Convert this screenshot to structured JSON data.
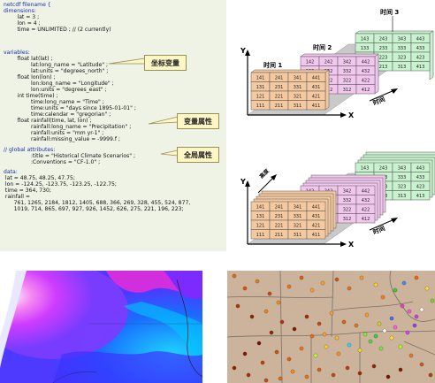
{
  "code": {
    "lines": [
      {
        "text": "netcdf filename {",
        "kw": true
      },
      {
        "text": "dimensions:",
        "kw": true
      },
      {
        "text": "        lat = 3 ;",
        "kw": false
      },
      {
        "text": "        lon = 4 ;",
        "kw": false
      },
      {
        "text": "        time = UNLIMITED ; // (2 currently)",
        "kw": false
      },
      {
        "text": "variables:",
        "kw": true
      },
      {
        "text": "        float lat(lat) ;",
        "kw": false
      },
      {
        "text": "                lat:long_name = \"Latitude\" ;",
        "kw": false
      },
      {
        "text": "                lat:units = \"degrees_north\" ;",
        "kw": false
      },
      {
        "text": "        float lon(lon) ;",
        "kw": false
      },
      {
        "text": "                lon:long_name = \"Longitude\" ;",
        "kw": false
      },
      {
        "text": "                lon:units = \"degrees_east\" ;",
        "kw": false
      },
      {
        "text": "        int time(time) ;",
        "kw": false
      },
      {
        "text": "                time:long_name = \"Time\" ;",
        "kw": false
      },
      {
        "text": "                time:units = \"days since 1895-01-01\" ;",
        "kw": false
      },
      {
        "text": "                time:calendar = \"gregorian\" ;",
        "kw": false
      },
      {
        "text": "        float rainfall(time, lat, lon) ;",
        "kw": false
      },
      {
        "text": "                rainfall:long_name = \"Precipitation\" ;",
        "kw": false
      },
      {
        "text": "                rainfall:units = \"mm yr-1\" ;",
        "kw": false
      },
      {
        "text": "                rainfall:missing_value = -9999.f ;",
        "kw": false
      },
      {
        "text": "// global attributes:",
        "kw": true
      },
      {
        "text": "                :title = \"Historical Climate Scenarios\" ;",
        "kw": false
      },
      {
        "text": "                :Conventions = \"CF-1.0\" ;",
        "kw": false
      },
      {
        "text": "data:",
        "kw": true
      },
      {
        "text": " lat = 48.75, 48.25, 47.75;",
        "kw": false
      },
      {
        "text": " lon = -124.25, -123.75, -123.25, -122.75;",
        "kw": false
      },
      {
        "text": " time = 364, 730;",
        "kw": false
      },
      {
        "text": " rainfall =",
        "kw": false
      },
      {
        "text": "      761, 1265, 2184, 1812, 1405, 688, 366, 269, 328, 455, 524, 877,",
        "kw": false
      },
      {
        "text": "      1019, 714, 865, 697, 927, 926, 1452, 626, 275, 221, 196, 223;",
        "kw": false
      }
    ],
    "callouts": {
      "coord_vars": "坐标变量",
      "var_attrs": "变量属性",
      "global_attrs": "全局属性"
    }
  },
  "diagram_top": {
    "time1": "时间 1",
    "time2": "时间 2",
    "time3": "时间 3",
    "time_axis": "时间",
    "y_axis": "Y",
    "x_axis": "X",
    "grid1": [
      [
        "141",
        "241",
        "341",
        "441"
      ],
      [
        "131",
        "231",
        "331",
        "431"
      ],
      [
        "121",
        "221",
        "321",
        "421"
      ],
      [
        "111",
        "211",
        "311",
        "411"
      ]
    ],
    "grid2": [
      [
        "142",
        "242",
        "342",
        "442"
      ],
      [
        "132",
        "232",
        "332",
        "432"
      ],
      [
        "122",
        "222",
        "322",
        "422"
      ],
      [
        "112",
        "212",
        "312",
        "412"
      ]
    ],
    "grid3": [
      [
        "143",
        "243",
        "343",
        "443"
      ],
      [
        "133",
        "233",
        "333",
        "433"
      ],
      [
        "123",
        "223",
        "323",
        "423"
      ],
      [
        "113",
        "213",
        "313",
        "413"
      ]
    ],
    "color1": "#f5c9a0",
    "color2": "#f2c7ee",
    "color3": "#c9f2cf"
  },
  "diagram_bottom": {
    "height_axis": "高度",
    "time_axis": "时间",
    "y_axis": "Y",
    "x_axis": "X",
    "grid1": [
      [
        "141",
        "241",
        "341",
        "441"
      ],
      [
        "131",
        "231",
        "331",
        "431"
      ],
      [
        "121",
        "221",
        "321",
        "421"
      ],
      [
        "111",
        "211",
        "311",
        "411"
      ]
    ],
    "grid2": [
      [
        "142",
        "242",
        "342",
        "442"
      ],
      [
        "132",
        "232",
        "332",
        "432"
      ],
      [
        "122",
        "222",
        "322",
        "422"
      ],
      [
        "112",
        "212",
        "312",
        "412"
      ]
    ],
    "grid3": [
      [
        "143",
        "243",
        "343",
        "443"
      ],
      [
        "133",
        "233",
        "333",
        "433"
      ],
      [
        "123",
        "223",
        "323",
        "423"
      ],
      [
        "113",
        "213",
        "313",
        "413"
      ]
    ]
  }
}
